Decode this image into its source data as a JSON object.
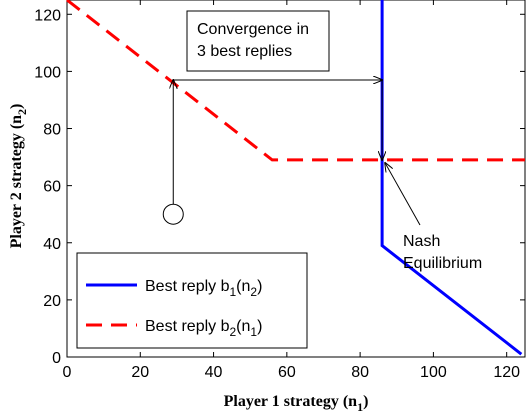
{
  "chart_data": {
    "type": "line",
    "xlabel": {
      "main": "Player 1 strategy (n",
      "sub": "1",
      "end": ")"
    },
    "ylabel": {
      "main": "Player 2 strategy (n",
      "sub": "2",
      "end": ")"
    },
    "xlim": [
      0,
      125
    ],
    "ylim": [
      0,
      125
    ],
    "xticks": [
      0,
      20,
      40,
      60,
      80,
      100,
      120
    ],
    "yticks": [
      0,
      20,
      40,
      60,
      80,
      100,
      120
    ],
    "grid": false,
    "legend_position": "bottom-left",
    "series": [
      {
        "name": "Best reply b1(n2)",
        "label": {
          "main": "Best reply b",
          "sub1": "1",
          "mid": "(n",
          "sub2": "2",
          "end": ")"
        },
        "color": "#0000ff",
        "style": "solid",
        "points": [
          [
            86,
            125
          ],
          [
            86,
            39
          ],
          [
            124,
            1
          ]
        ]
      },
      {
        "name": "Best reply b2(n1)",
        "label": {
          "main": "Best reply b",
          "sub1": "2",
          "mid": "(n",
          "sub2": "1",
          "end": ")"
        },
        "color": "#ff0000",
        "style": "dashed",
        "points": [
          [
            0,
            125
          ],
          [
            56,
            69
          ],
          [
            125,
            69
          ]
        ]
      }
    ],
    "annotations": {
      "convergence_lines": [
        "Convergence in",
        "3 best replies"
      ],
      "nash_lines": [
        "Nash",
        "Equilibrium"
      ],
      "start_point": [
        29,
        50
      ],
      "path": [
        [
          29,
          50
        ],
        [
          29,
          97
        ],
        [
          86,
          97
        ],
        [
          86,
          69
        ]
      ],
      "nash_point": [
        86,
        69
      ]
    }
  }
}
